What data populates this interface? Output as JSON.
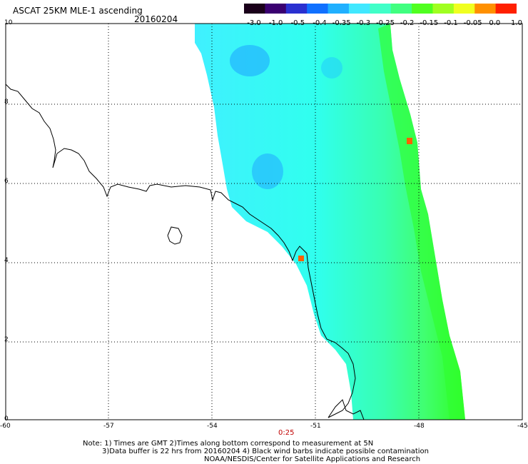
{
  "header": {
    "title": "ASCAT 25KM MLE-1 ascending",
    "date": "20160204"
  },
  "colorbar": {
    "labels": [
      "-3.0",
      "-1.0",
      "-0.5",
      "-0.4",
      "-0.35",
      "-0.3",
      "-0.25",
      "-0.2",
      "-0.15",
      "-0.1",
      "-0.05",
      "0.0",
      "1.0"
    ],
    "colors": [
      "#1a001a",
      "#3a0070",
      "#2a30d0",
      "#1070ff",
      "#20b0ff",
      "#40e8ff",
      "#40ffc8",
      "#40ff80",
      "#50ff20",
      "#a0ff20",
      "#f0ff20",
      "#ff9000",
      "#ff2000"
    ]
  },
  "axes": {
    "x_ticks": [
      "-60",
      "-57",
      "-54",
      "-51",
      "-48",
      "-45"
    ],
    "y_ticks": [
      "0",
      "2",
      "4",
      "6",
      "8",
      "10"
    ]
  },
  "time_label": "0:25",
  "time_color": "#c00000",
  "notes": {
    "line1": "Note: 1) Times are GMT 2)Times along bottom correspond to measurement at 5N",
    "line2": "3)Data buffer is 22 hrs from 20160204 4) Black wind barbs indicate possible contamination",
    "line3": "NOAA/NESDIS/Center for Satellite Applications and Research"
  }
}
